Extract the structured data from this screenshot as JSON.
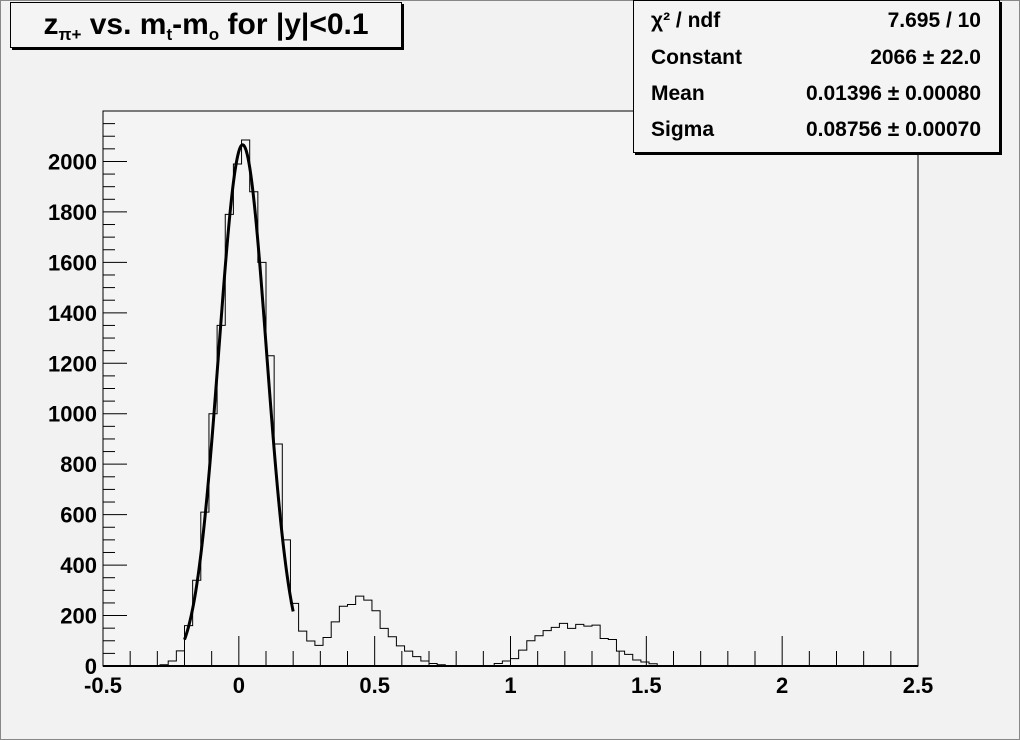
{
  "title": {
    "main": "z",
    "sub1": "π+",
    "mid": " vs. m",
    "sub2": "t",
    "mid2": "-m",
    "sub3": "o",
    "tail": " for |y|<0.1"
  },
  "stats": [
    {
      "label": "χ² / ndf",
      "value": "7.695 / 10"
    },
    {
      "label": "Constant",
      "value": "2066 ± 22.0"
    },
    {
      "label": "Mean",
      "value": "0.01396 ± 0.00080"
    },
    {
      "label": "Sigma",
      "value": "0.08756 ± 0.00070"
    }
  ],
  "chart_data": {
    "type": "histogram",
    "xlim": [
      -0.5,
      2.5
    ],
    "ylim": [
      0,
      2200
    ],
    "bin_width": 0.03,
    "bin_start": -0.5,
    "values": [
      0,
      0,
      0,
      0,
      0,
      0,
      2,
      5,
      20,
      60,
      160,
      340,
      610,
      1000,
      1350,
      1790,
      1990,
      2085,
      1880,
      1600,
      1230,
      880,
      500,
      248,
      138,
      99,
      82,
      113,
      175,
      237,
      244,
      277,
      261,
      219,
      149,
      116,
      80,
      59,
      37,
      20,
      10,
      5,
      0,
      0,
      0,
      0,
      0,
      0,
      10,
      20,
      29,
      63,
      100,
      120,
      140,
      153,
      169,
      149,
      165,
      158,
      162,
      109,
      105,
      59,
      46,
      24,
      16,
      9,
      0,
      0,
      0,
      0,
      0,
      0,
      0,
      0,
      0,
      0,
      0,
      0,
      0,
      0,
      0,
      0,
      0,
      0,
      0,
      0,
      0,
      0,
      0,
      0,
      0,
      0,
      0,
      0,
      0,
      0,
      0,
      0
    ],
    "fit": {
      "type": "gaus",
      "constant": 2066,
      "mean": 0.01396,
      "sigma": 0.08756,
      "range": [
        -0.2,
        0.2
      ]
    },
    "xticks": [
      "-0.5",
      "0",
      "0.5",
      "1",
      "1.5",
      "2",
      "2.5"
    ],
    "yticks": [
      "0",
      "200",
      "400",
      "600",
      "800",
      "1000",
      "1200",
      "1400",
      "1600",
      "1800",
      "2000"
    ],
    "grid": false
  }
}
